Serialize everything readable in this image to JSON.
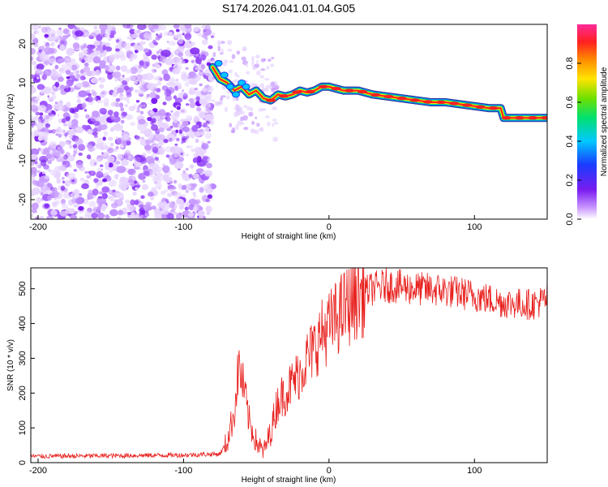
{
  "figure": {
    "title": "S174.2026.041.01.04.G05"
  },
  "colors": {
    "scatter_noise": [
      "#e7d4ff",
      "#c79aff",
      "#9f56ff",
      "#7a1cf0"
    ],
    "snr_line": "#e8201d",
    "ridge_core": "#ff2020",
    "ridge_mid": "#ffe400",
    "ridge_outer": "#00e070",
    "ridge_edge": "#0080ff"
  },
  "chart_data": [
    {
      "type": "heatmap",
      "name": "spectrogram",
      "xlabel": "Height of straight line (km)",
      "ylabel": "Frequency (Hz)",
      "xlim": [
        -205,
        150
      ],
      "ylim": [
        -25,
        25
      ],
      "xticks": [
        -200,
        -100,
        0,
        100
      ],
      "yticks": [
        -20,
        -10,
        0,
        10,
        20
      ],
      "noise_region_x": [
        -205,
        -80
      ],
      "ridge": {
        "x": [
          -80,
          -75,
          -70,
          -65,
          -60,
          -55,
          -50,
          -45,
          -40,
          -35,
          -30,
          -25,
          -20,
          -15,
          -10,
          -5,
          0,
          5,
          10,
          20,
          30,
          40,
          50,
          60,
          70,
          80,
          90,
          100,
          110,
          118,
          120,
          125,
          130,
          140,
          150
        ],
        "y": [
          14,
          11,
          10,
          8,
          9,
          7,
          8,
          6,
          5.5,
          7,
          6.5,
          7,
          8,
          7.5,
          8,
          9,
          9,
          8.5,
          8,
          8,
          7,
          6.5,
          6,
          5.5,
          5,
          5,
          4.5,
          4,
          3.5,
          3.5,
          1,
          1,
          1,
          1,
          1
        ]
      },
      "colorbar": {
        "label": "Normalized spectral amplitude",
        "range": [
          0.0,
          1.0
        ],
        "ticks": [
          "0.0",
          "0.2",
          "0.4",
          "0.6",
          "0.8"
        ],
        "tick_values": [
          0.0,
          0.2,
          0.4,
          0.6,
          0.8
        ]
      }
    },
    {
      "type": "line",
      "name": "snr",
      "xlabel": "Height of straight line (km)",
      "ylabel": "SNR (10 * v/v)",
      "xlim": [
        -205,
        150
      ],
      "ylim": [
        0,
        560
      ],
      "xticks": [
        -200,
        -100,
        0,
        100
      ],
      "yticks": [
        0,
        100,
        200,
        300,
        400,
        500
      ],
      "trend": {
        "x": [
          -205,
          -150,
          -100,
          -75,
          -70,
          -65,
          -62,
          -58,
          -55,
          -50,
          -45,
          -40,
          -35,
          -30,
          -25,
          -20,
          -15,
          -10,
          -5,
          0,
          10,
          20,
          30,
          40,
          60,
          80,
          100,
          120,
          140,
          150
        ],
        "y": [
          18,
          20,
          22,
          25,
          60,
          150,
          280,
          200,
          120,
          60,
          30,
          90,
          180,
          200,
          230,
          260,
          300,
          330,
          370,
          390,
          440,
          480,
          500,
          510,
          500,
          495,
          480,
          460,
          455,
          470
        ]
      }
    }
  ]
}
